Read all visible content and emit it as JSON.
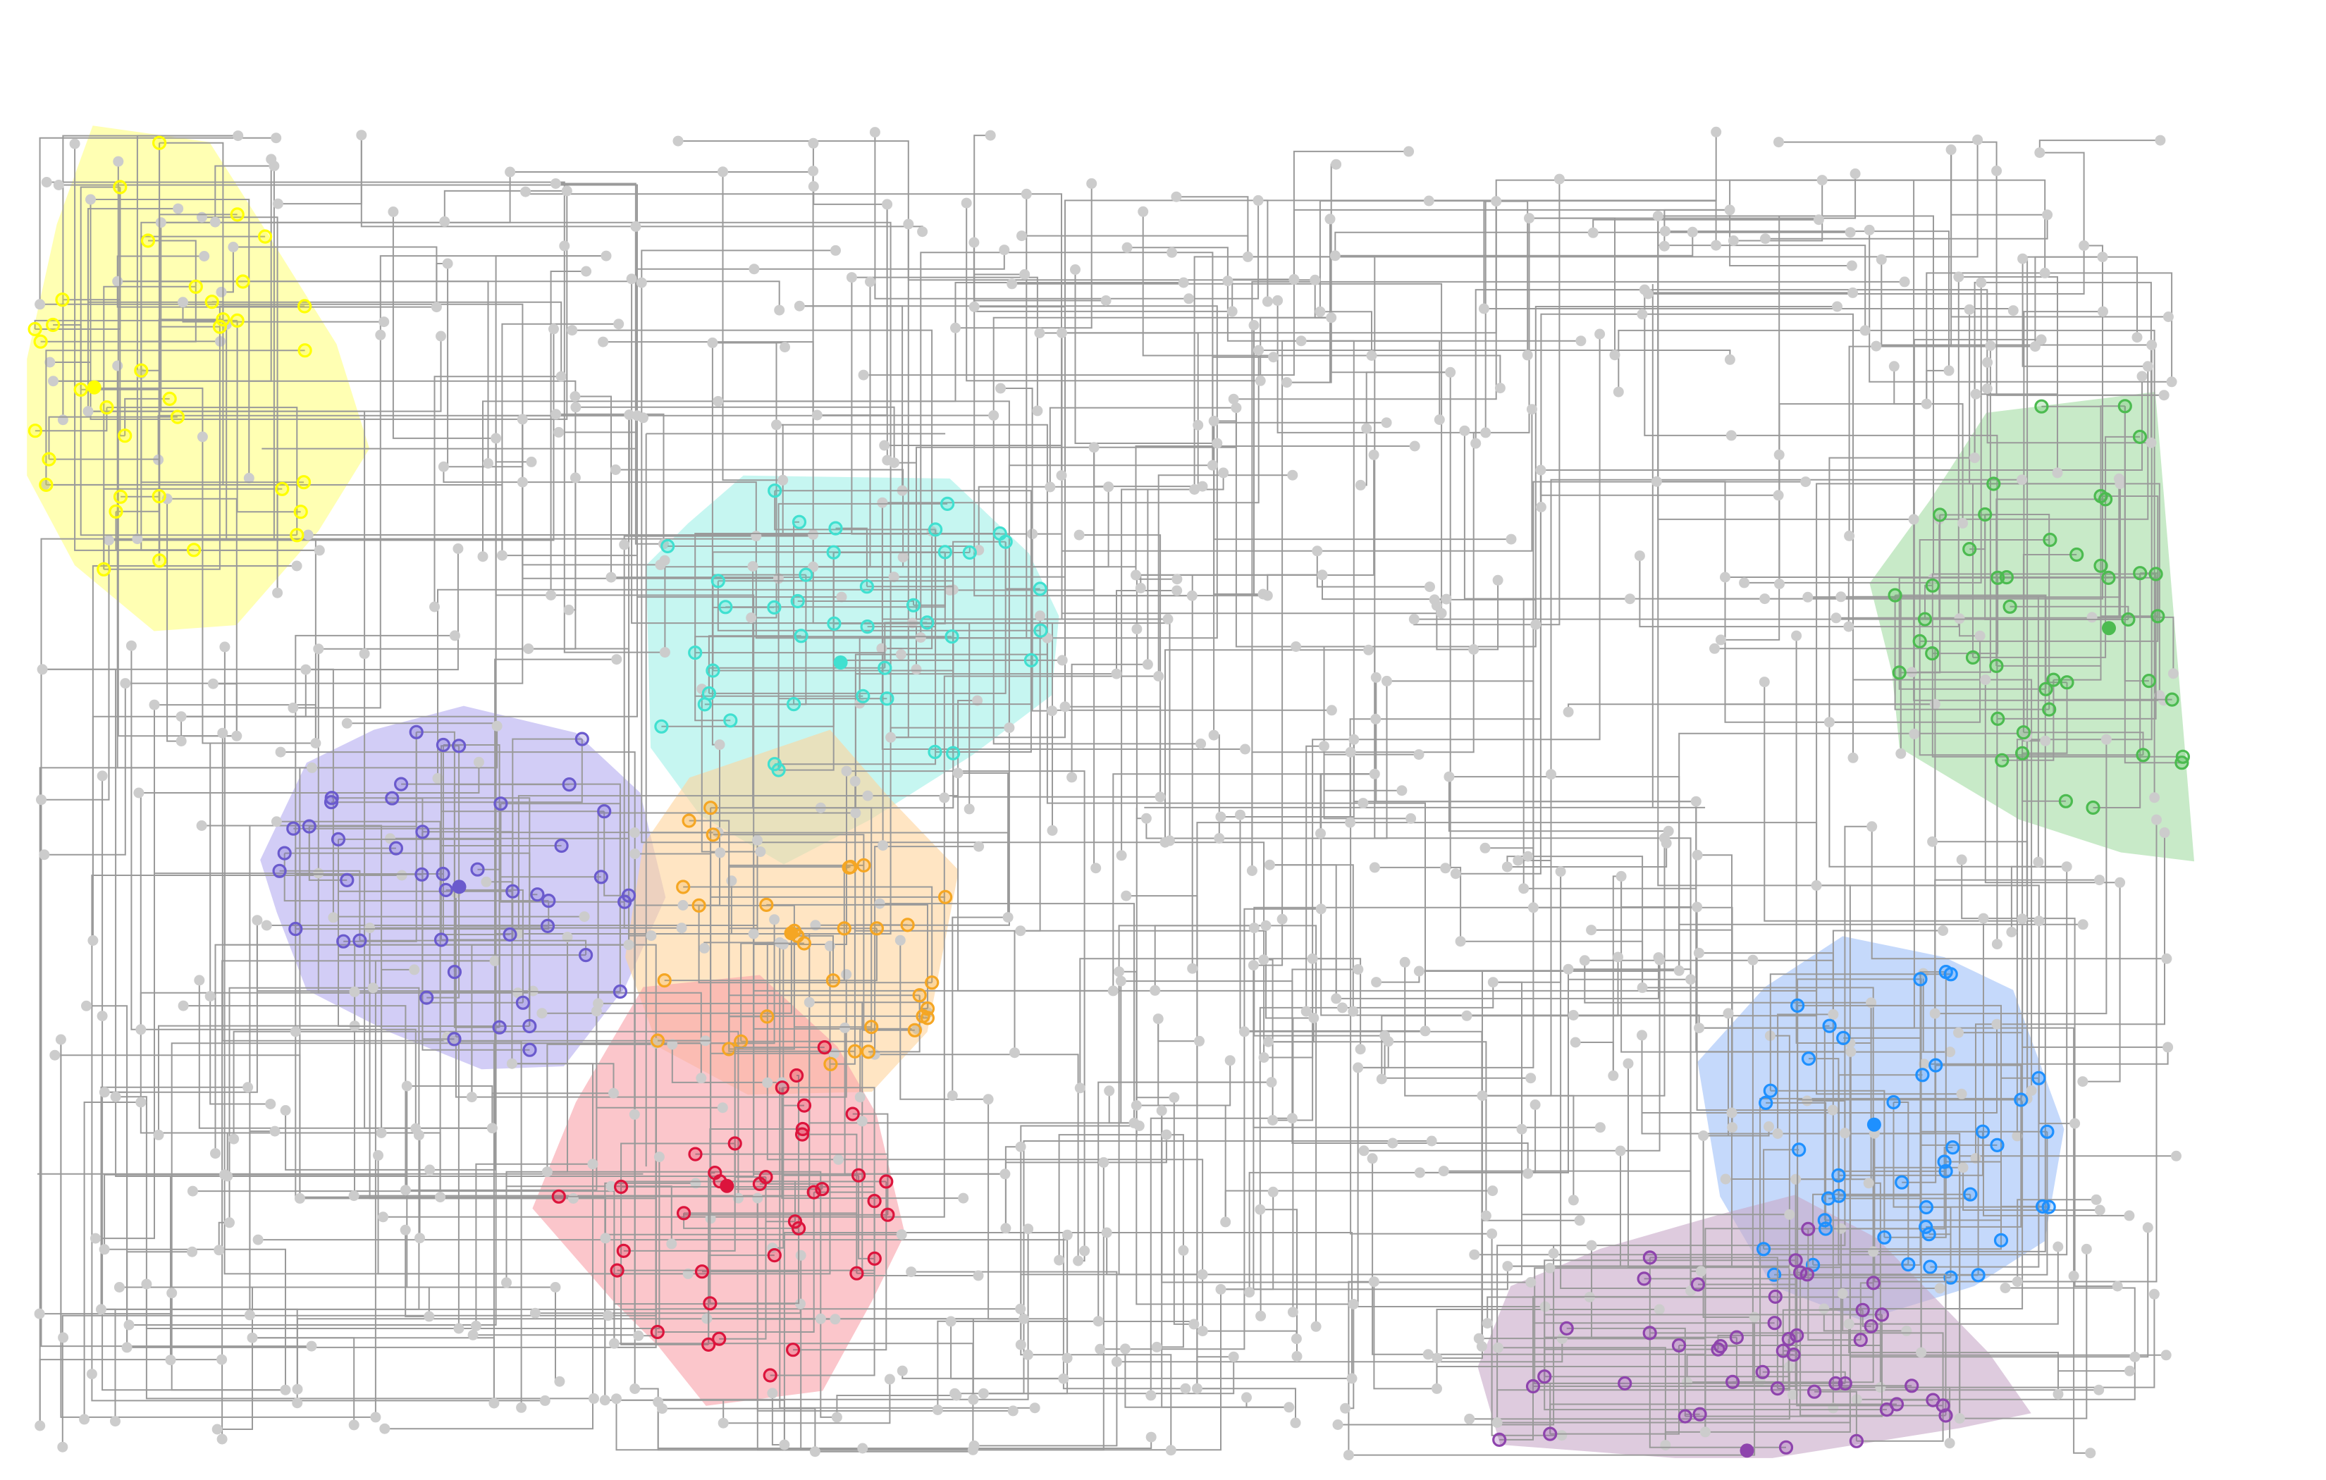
{
  "diagram": {
    "type": "clustered-network",
    "background": "#ffffff",
    "edge_color": "#9a9a9a",
    "node_color": "#cccccc",
    "background_node_count": 900,
    "clusters": [
      {
        "id": "yellow",
        "color": "#ffff00",
        "fill": "#ffff80",
        "members": 36
      },
      {
        "id": "cyan",
        "color": "#40e0d0",
        "fill": "#a0f0e8",
        "members": 40
      },
      {
        "id": "violet",
        "color": "#6a5acd",
        "fill": "#b4acf0",
        "members": 45
      },
      {
        "id": "orange",
        "color": "#f5a623",
        "fill": "#ffd39b",
        "members": 32
      },
      {
        "id": "red",
        "color": "#dc143c",
        "fill": "#f8a0a8",
        "members": 36
      },
      {
        "id": "green",
        "color": "#4cbb50",
        "fill": "#a3dca4",
        "members": 43
      },
      {
        "id": "blue",
        "color": "#1e90ff",
        "fill": "#9fbff8",
        "members": 42
      },
      {
        "id": "purple",
        "color": "#8e44ad",
        "fill": "#c8a8c8",
        "members": 45
      }
    ]
  }
}
